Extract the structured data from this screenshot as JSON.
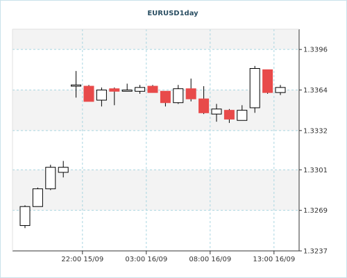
{
  "chart_data": {
    "type": "candlestick",
    "title": "EURUSD1day",
    "xlabel": "",
    "ylabel": "",
    "ylim": [
      1.3237,
      1.3412
    ],
    "y_ticks": [
      1.3237,
      1.3269,
      1.3301,
      1.3332,
      1.3364,
      1.3396
    ],
    "y_tick_labels": [
      "1.3237",
      "1.3269",
      "1.3301",
      "1.3332",
      "1.3364",
      "1.3396"
    ],
    "x_ticks": [
      {
        "index": 4.5,
        "label": "22:00 15/09"
      },
      {
        "index": 9.5,
        "label": "03:00 16/09"
      },
      {
        "index": 14.5,
        "label": "08:00 16/09"
      },
      {
        "index": 19.5,
        "label": "13:00 16/09"
      }
    ],
    "grid": true,
    "colors": {
      "up_fill": "#ffffff",
      "down_fill": "#e84a4a",
      "outline": "#000000",
      "grid": "#a8d5e0",
      "band": "#f3f3f3",
      "plot_border": "#333333",
      "frame": "#c9e2ea",
      "title": "#2b4f63"
    },
    "candles": [
      {
        "open": 1.3257,
        "high": 1.3273,
        "low": 1.3255,
        "close": 1.3272
      },
      {
        "open": 1.3272,
        "high": 1.3287,
        "low": 1.3272,
        "close": 1.3286
      },
      {
        "open": 1.3286,
        "high": 1.3305,
        "low": 1.3285,
        "close": 1.3303
      },
      {
        "open": 1.3299,
        "high": 1.3308,
        "low": 1.3295,
        "close": 1.3303
      },
      {
        "open": 1.3367,
        "high": 1.3379,
        "low": 1.3358,
        "close": 1.3368
      },
      {
        "open": 1.3367,
        "high": 1.3368,
        "low": 1.3355,
        "close": 1.3355
      },
      {
        "open": 1.3356,
        "high": 1.3366,
        "low": 1.3351,
        "close": 1.3364
      },
      {
        "open": 1.3365,
        "high": 1.3366,
        "low": 1.3352,
        "close": 1.3363
      },
      {
        "open": 1.3363,
        "high": 1.3369,
        "low": 1.3363,
        "close": 1.3364
      },
      {
        "open": 1.3363,
        "high": 1.3368,
        "low": 1.3361,
        "close": 1.3366
      },
      {
        "open": 1.3367,
        "high": 1.3368,
        "low": 1.3362,
        "close": 1.3362
      },
      {
        "open": 1.3363,
        "high": 1.3363,
        "low": 1.3351,
        "close": 1.3354
      },
      {
        "open": 1.3354,
        "high": 1.3368,
        "low": 1.3353,
        "close": 1.3365
      },
      {
        "open": 1.3365,
        "high": 1.3373,
        "low": 1.3355,
        "close": 1.3357
      },
      {
        "open": 1.3357,
        "high": 1.3367,
        "low": 1.3345,
        "close": 1.3346
      },
      {
        "open": 1.3345,
        "high": 1.3353,
        "low": 1.3339,
        "close": 1.3349
      },
      {
        "open": 1.3348,
        "high": 1.3349,
        "low": 1.3338,
        "close": 1.3341
      },
      {
        "open": 1.334,
        "high": 1.3352,
        "low": 1.334,
        "close": 1.3348
      },
      {
        "open": 1.335,
        "high": 1.3383,
        "low": 1.3346,
        "close": 1.3381
      },
      {
        "open": 1.338,
        "high": 1.338,
        "low": 1.3361,
        "close": 1.3362
      },
      {
        "open": 1.3362,
        "high": 1.3368,
        "low": 1.336,
        "close": 1.3366
      }
    ]
  }
}
